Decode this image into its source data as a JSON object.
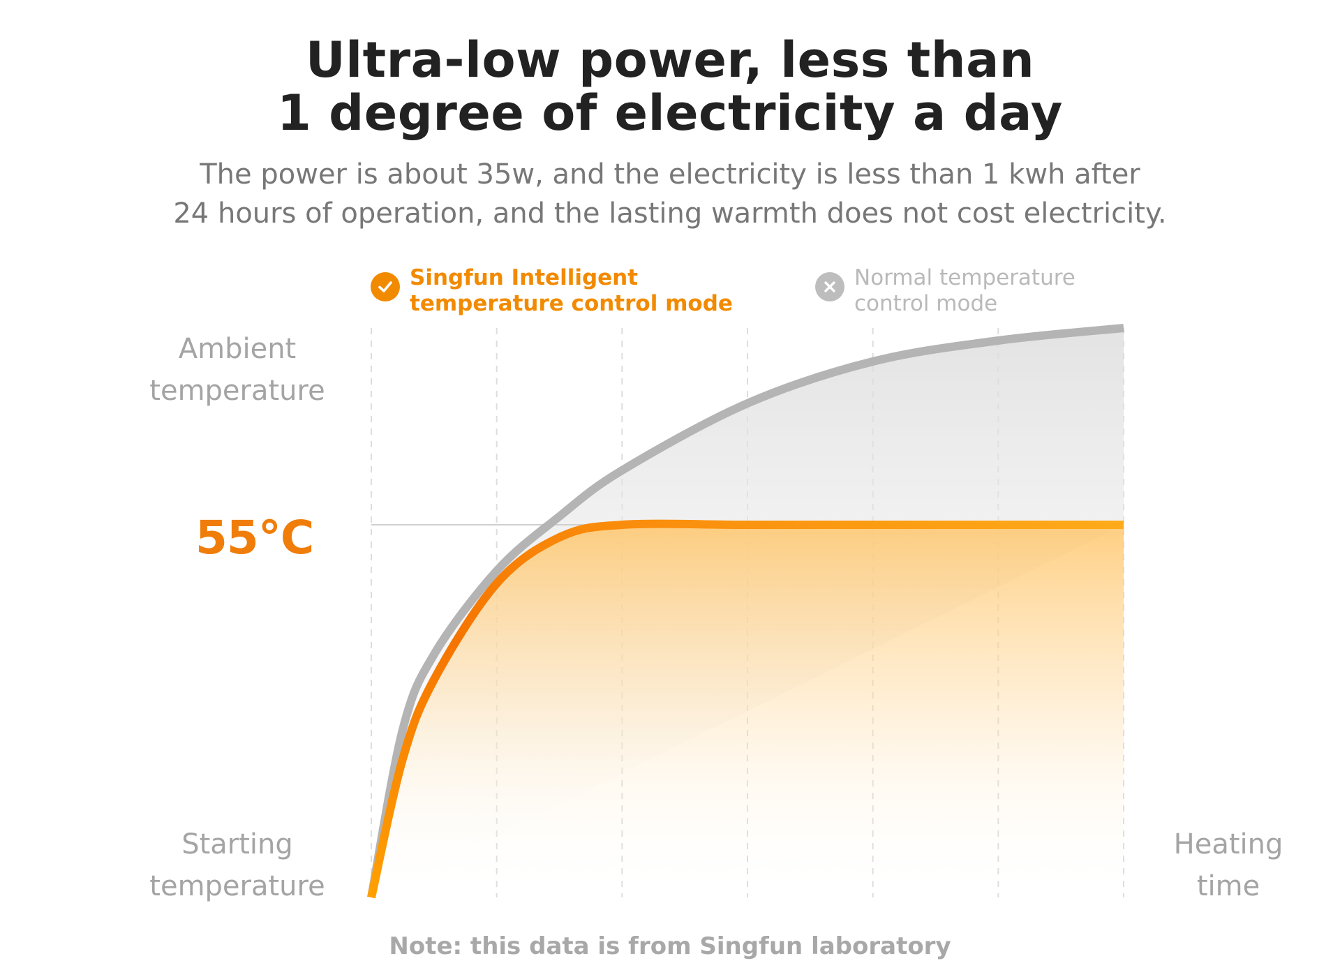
{
  "header": {
    "title_line1": "Ultra-low power, less than",
    "title_line2": "1 degree of electricity a day",
    "subtitle_line1": "The power is about 35w, and the electricity is less than 1 kwh after",
    "subtitle_line2": "24 hours of operation, and the lasting warmth does not cost electricity."
  },
  "legend": {
    "singfun_line1": "Singfun Intelligent",
    "singfun_line2": "temperature control mode",
    "normal_line1": "Normal temperature",
    "normal_line2": "control mode"
  },
  "axes": {
    "y_top_line1": "Ambient",
    "y_top_line2": "temperature",
    "y_bottom_line1": "Starting",
    "y_bottom_line2": "temperature",
    "x_line1": "Heating",
    "x_line2": "time",
    "marker_label": "55°C"
  },
  "note": "Note: this data is from Singfun laboratory",
  "colors": {
    "singfun": "#f57c00",
    "singfun_light": "#ffb000",
    "normal": "#b4b4b4",
    "grid": "#dddddd"
  },
  "icons": {
    "singfun": "check-circle-icon",
    "normal": "x-circle-icon"
  },
  "chart_data": {
    "type": "line",
    "x": [
      0,
      1,
      2,
      3,
      4,
      5,
      6
    ],
    "series": [
      {
        "name": "Singfun Intelligent temperature control mode",
        "points": [
          [
            0,
            0
          ],
          [
            0.25,
            0.33
          ],
          [
            0.5,
            0.52
          ],
          [
            1,
            0.75
          ],
          [
            1.5,
            0.86
          ],
          [
            2,
            0.89
          ],
          [
            3,
            0.89
          ],
          [
            4,
            0.89
          ],
          [
            5,
            0.89
          ],
          [
            6,
            0.89
          ]
        ]
      },
      {
        "name": "Normal temperature control mode",
        "points": [
          [
            0,
            0
          ],
          [
            0.25,
            0.4
          ],
          [
            0.5,
            0.58
          ],
          [
            1,
            0.78
          ],
          [
            1.5,
            0.91
          ],
          [
            2,
            1.02
          ],
          [
            3,
            1.18
          ],
          [
            4,
            1.28
          ],
          [
            5,
            1.33
          ],
          [
            6,
            1.36
          ]
        ]
      }
    ],
    "reference_line": {
      "y": 0.89,
      "label": "55°C"
    },
    "xlim": [
      0,
      6
    ],
    "ylim": [
      0,
      1.5
    ],
    "grid": "vertical dashed"
  }
}
